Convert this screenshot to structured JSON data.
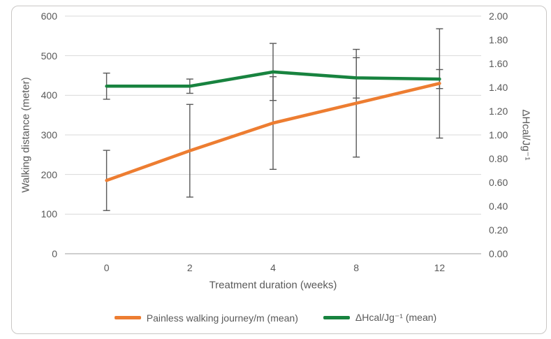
{
  "figure": {
    "background": "#ffffff",
    "border_color": "#c9c7c5"
  },
  "chart_data": {
    "type": "line",
    "x_tick_labels": [
      "0",
      "2",
      "4",
      "8",
      "12"
    ],
    "xlabel": "Treatment duration (weeks)",
    "grid": "horizontal",
    "gridline_color": "#d9d9d9",
    "axis_line_color": "#bfbfbf",
    "error_bar_color": "#595959",
    "text_color": "#595959",
    "legend_position": "bottom",
    "left_axis": {
      "label": "Walking distance (meter)",
      "min": 0,
      "max": 600,
      "step": 100,
      "tick_labels": [
        "0",
        "100",
        "200",
        "300",
        "400",
        "500",
        "600"
      ]
    },
    "right_axis": {
      "label": "ΔHcal/Jg⁻¹",
      "min": 0,
      "max": 2,
      "step": 0.2,
      "tick_labels": [
        "0.00",
        "0.20",
        "0.40",
        "0.60",
        "0.80",
        "1.00",
        "1.20",
        "1.40",
        "1.60",
        "1.80",
        "2.00"
      ]
    },
    "series": [
      {
        "name": "Painless walking journey/m (mean)",
        "axis": "left",
        "color": "#ed7d31",
        "values": [
          185,
          260,
          330,
          380,
          430
        ],
        "error": [
          76,
          117,
          117,
          136,
          138
        ]
      },
      {
        "name": "ΔHcal/Jg⁻¹ (mean)",
        "axis": "right",
        "color": "#18833f",
        "values": [
          1.41,
          1.41,
          1.53,
          1.48,
          1.47
        ],
        "error": [
          0.11,
          0.06,
          0.24,
          0.17,
          0.08
        ]
      }
    ]
  }
}
